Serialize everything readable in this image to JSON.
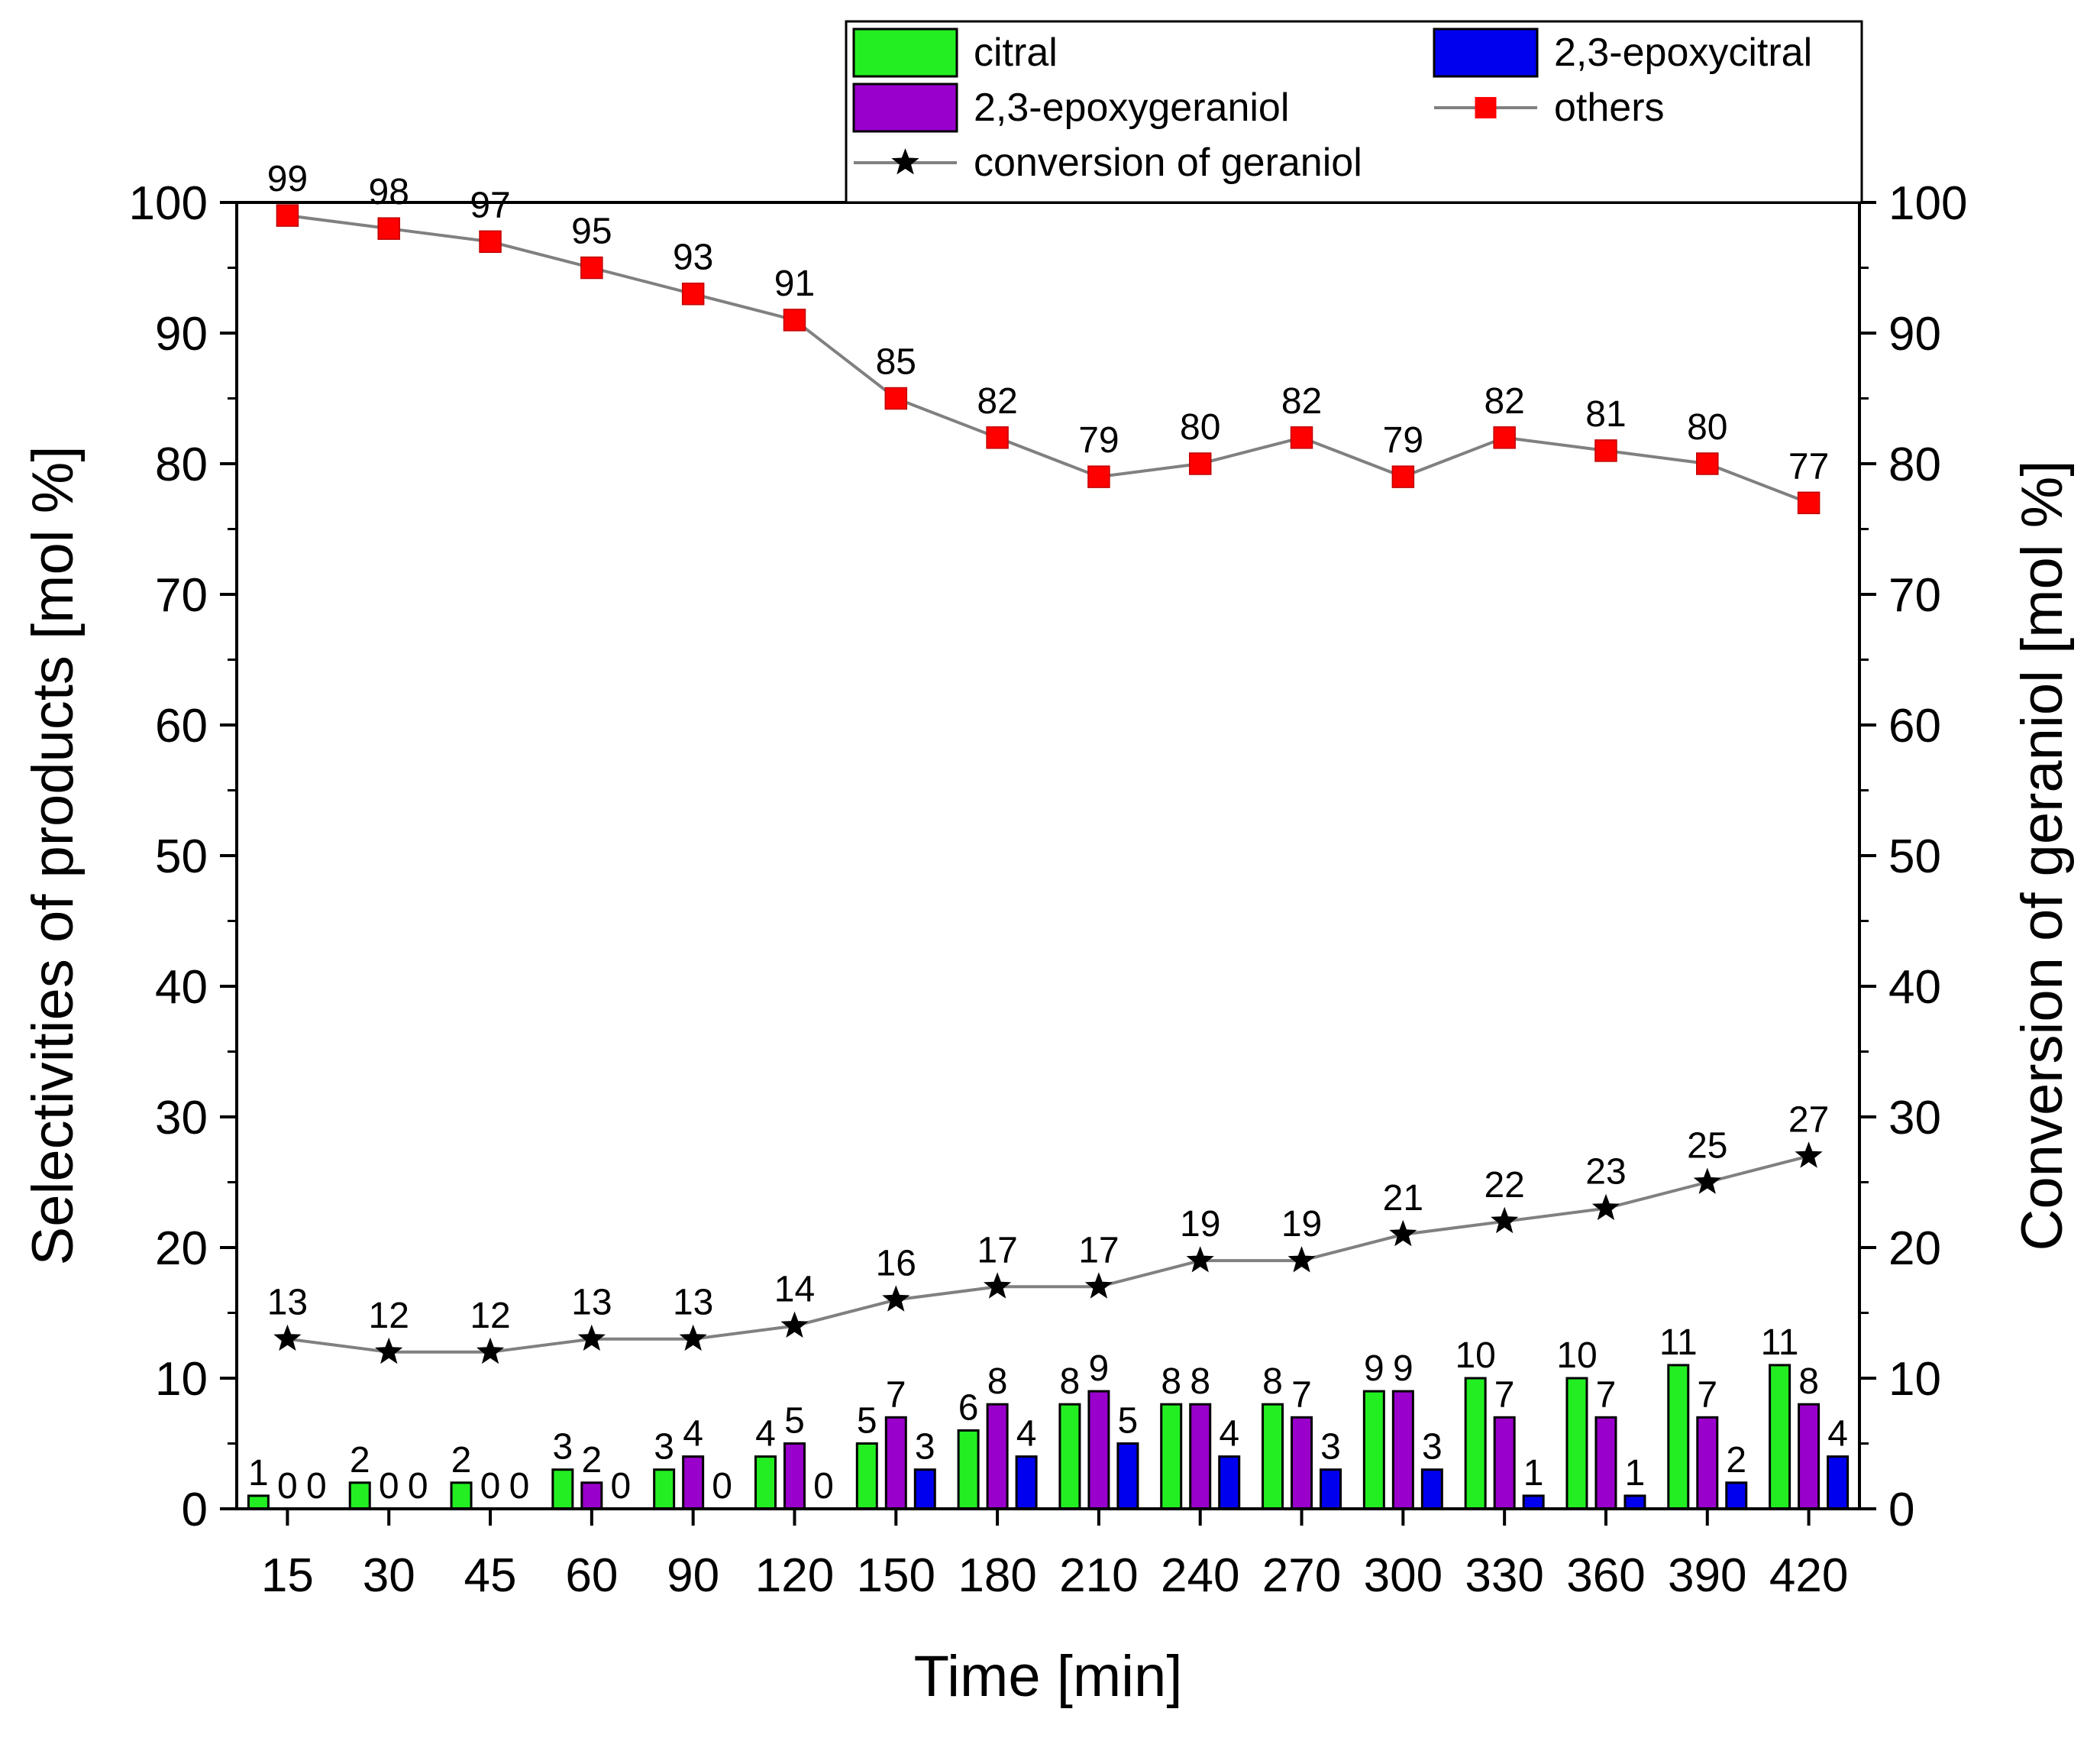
{
  "chart_data": {
    "type": "bar+line",
    "xlabel": "Time [min]",
    "ylabel_left": "Selectivities of products [mol %]",
    "ylabel_right": "Conversion of geraniol [mol %]",
    "ylim": [
      0,
      100
    ],
    "yticks": [
      "0",
      "10",
      "20",
      "30",
      "40",
      "50",
      "60",
      "70",
      "80",
      "90",
      "100"
    ],
    "categories": [
      "15",
      "30",
      "45",
      "60",
      "90",
      "120",
      "150",
      "180",
      "210",
      "240",
      "270",
      "300",
      "330",
      "360",
      "390",
      "420"
    ],
    "bar_series": [
      {
        "name": "citral",
        "color": "#22ee22",
        "values": [
          1,
          2,
          2,
          3,
          3,
          4,
          5,
          6,
          8,
          8,
          8,
          9,
          10,
          10,
          11,
          11
        ]
      },
      {
        "name": "2,3-epoxygeraniol",
        "color": "#9900cc",
        "values": [
          0,
          0,
          0,
          2,
          4,
          5,
          7,
          8,
          9,
          8,
          7,
          9,
          7,
          7,
          7,
          8
        ]
      },
      {
        "name": "2,3-epoxycitral",
        "color": "#0000ee",
        "values": [
          0,
          0,
          0,
          0,
          0,
          0,
          3,
          4,
          5,
          4,
          3,
          3,
          1,
          1,
          2,
          4
        ]
      }
    ],
    "line_series": [
      {
        "name": "others",
        "marker": "square",
        "marker_color": "#ff0000",
        "line_color": "#808080",
        "values": [
          99,
          98,
          97,
          95,
          93,
          91,
          85,
          82,
          79,
          80,
          82,
          79,
          82,
          81,
          80,
          77
        ]
      },
      {
        "name": "conversion of geraniol",
        "marker": "star",
        "marker_color": "#000000",
        "line_color": "#808080",
        "values": [
          13,
          12,
          12,
          13,
          13,
          14,
          16,
          17,
          17,
          19,
          19,
          21,
          22,
          23,
          25,
          27
        ]
      }
    ],
    "legend": {
      "position": "top-center",
      "entries": [
        "citral",
        "2,3-epoxycitral",
        "2,3-epoxygeraniol",
        "others",
        "conversion of geraniol"
      ]
    }
  }
}
